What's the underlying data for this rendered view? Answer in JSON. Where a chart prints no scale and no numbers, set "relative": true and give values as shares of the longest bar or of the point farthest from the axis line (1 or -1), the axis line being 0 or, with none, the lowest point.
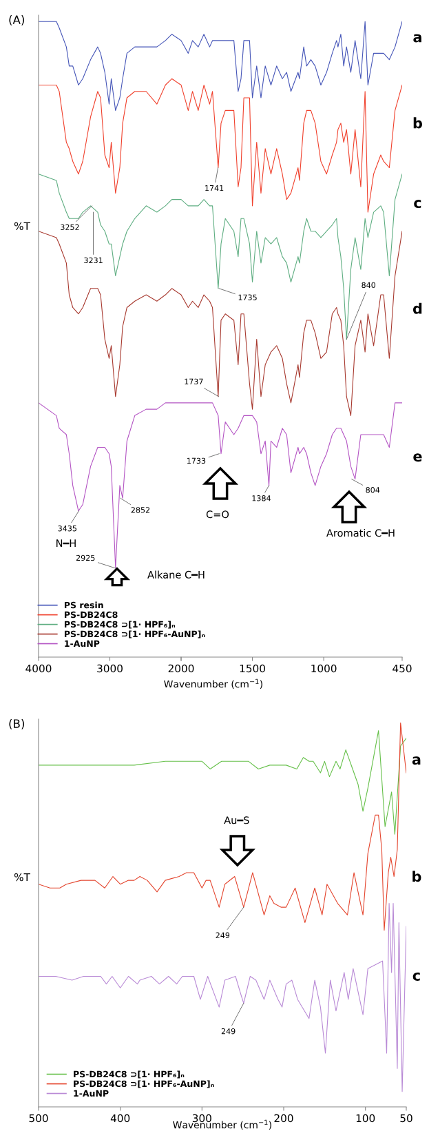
{
  "chart_data": [
    {
      "type": "line",
      "title": "(A)",
      "ylabel": "%T",
      "xlabel": "Wavenumber (cm$^{−1}$)",
      "relative": true,
      "legend": "bottom right",
      "grid": false,
      "xlim": [
        4000,
        2000
      ],
      "xticks": [
        4000,
        3000,
        {
          "value": 2000,
          "label": null
        }
      ],
      "x": [
        4000,
        3750,
        3710,
        3610,
        3570,
        3520,
        3440,
        3380,
        3270,
        3170,
        3130,
        3070,
        3010,
        2980,
        2920,
        2860,
        2820,
        2760,
        2650,
        2490,
        2340,
        2220,
        2130,
        2000
      ],
      "series": [
        {
          "name": "PS resin",
          "color": "#4656b8",
          "values": [
            1.0,
            1.0,
            0.99,
            0.96,
            0.93,
            0.93,
            0.9,
            0.91,
            0.94,
            0.96,
            0.95,
            0.92,
            0.87,
            0.91,
            0.86,
            0.88,
            0.91,
            0.95,
            0.96,
            0.96,
            0.96,
            0.97,
            0.98,
            0.97
          ]
        },
        {
          "name": "PS-DB24C8",
          "color": "#f0412d",
          "values": [
            0.9,
            0.9,
            0.89,
            0.81,
            0.8,
            0.78,
            0.76,
            0.78,
            0.85,
            0.89,
            0.88,
            0.79,
            0.77,
            0.81,
            0.73,
            0.77,
            0.84,
            0.88,
            0.89,
            0.89,
            0.87,
            0.9,
            0.91,
            0.9
          ]
        },
        {
          "name": "PS-DB24C8 ⊃[1· HPF₆]ₙ",
          "color": "#5fae82",
          "values": [
            0.76,
            0.75,
            0.73,
            0.7,
            0.69,
            0.69,
            0.69,
            0.7,
            0.71,
            0.7,
            0.68,
            0.67,
            0.65,
            0.65,
            0.6,
            0.63,
            0.65,
            0.67,
            0.69,
            0.71,
            0.7,
            0.71,
            0.72,
            0.72
          ]
        },
        {
          "name": "PS-DB24C8 ⊃[1· HPF₆-AuNP]ₙ",
          "color": "#a83a30",
          "values": [
            0.67,
            0.66,
            0.65,
            0.62,
            0.57,
            0.55,
            0.54,
            0.55,
            0.58,
            0.58,
            0.57,
            0.5,
            0.47,
            0.49,
            0.41,
            0.46,
            0.52,
            0.55,
            0.56,
            0.57,
            0.56,
            0.57,
            0.58,
            0.57
          ]
        },
        {
          "name": "1-AuNP",
          "color": "#b455c4",
          "values": [
            0.4,
            0.38,
            0.36,
            0.35,
            0.32,
            0.27,
            0.23,
            0.24,
            0.3,
            0.33,
            0.33,
            0.33,
            0.32,
            0.3,
            0.14,
            0.27,
            0.25,
            0.34,
            0.38,
            0.39,
            0.39,
            0.4,
            0.4,
            0.4
          ]
        }
      ],
      "annotations": [
        "N━H",
        "Alkane C━H",
        {
          "text": "3252",
          "x": 3252,
          "y": 0.71
        },
        {
          "text": "3231",
          "x": 3231,
          "y": 0.7
        },
        {
          "text": "3435",
          "x": 3435,
          "y": 0.23
        },
        {
          "text": "2925",
          "x": 2925,
          "y": 0.14
        },
        {
          "text": "2852",
          "x": 2852,
          "y": 0.25
        }
      ]
    },
    {
      "type": "line",
      "relative": true,
      "grid": false,
      "xlim": [
        2000,
        450
      ],
      "xticks": [
        2000,
        1500,
        1000,
        450
      ],
      "x": [
        2000,
        1950,
        1920,
        1880,
        1840,
        1800,
        1780,
        1740,
        1720,
        1690,
        1630,
        1600,
        1580,
        1560,
        1520,
        1500,
        1470,
        1440,
        1410,
        1370,
        1330,
        1290,
        1260,
        1230,
        1180,
        1170,
        1140,
        1120,
        1090,
        1060,
        1020,
        980,
        940,
        910,
        900,
        880,
        860,
        840,
        810,
        780,
        740,
        710,
        690,
        650,
        600,
        580,
        540,
        500,
        450
      ],
      "series": [
        {
          "color": "#4656b8",
          "values": [
            0.97,
            0.95,
            0.97,
            0.96,
            0.98,
            0.96,
            0.97,
            0.97,
            0.97,
            0.97,
            0.97,
            0.89,
            0.91,
            0.97,
            0.97,
            0.88,
            0.93,
            0.88,
            0.93,
            0.9,
            0.93,
            0.91,
            0.92,
            0.89,
            0.92,
            0.91,
            0.96,
            0.93,
            0.94,
            0.93,
            0.9,
            0.92,
            0.95,
            0.97,
            0.96,
            0.98,
            0.93,
            0.96,
            0.92,
            0.97,
            0.91,
            1.0,
            0.9,
            0.95,
            0.95,
            0.95,
            0.94,
            0.96,
            1.0
          ]
        },
        {
          "color": "#f0412d",
          "values": [
            0.9,
            0.86,
            0.89,
            0.86,
            0.9,
            0.87,
            0.89,
            0.77,
            0.84,
            0.86,
            0.86,
            0.74,
            0.77,
            0.88,
            0.88,
            0.71,
            0.81,
            0.73,
            0.8,
            0.76,
            0.8,
            0.76,
            0.72,
            0.73,
            0.77,
            0.75,
            0.84,
            0.86,
            0.86,
            0.84,
            0.78,
            0.76,
            0.79,
            0.81,
            0.83,
            0.84,
            0.81,
            0.83,
            0.76,
            0.83,
            0.74,
            0.89,
            0.7,
            0.76,
            0.79,
            0.78,
            0.77,
            0.86,
            0.9
          ]
        },
        {
          "color": "#5fae82",
          "values": [
            0.72,
            0.71,
            0.71,
            0.71,
            0.72,
            0.71,
            0.71,
            0.58,
            0.65,
            0.69,
            0.67,
            0.63,
            0.69,
            0.69,
            0.65,
            0.59,
            0.67,
            0.62,
            0.66,
            0.65,
            0.66,
            0.63,
            0.62,
            0.59,
            0.63,
            0.62,
            0.67,
            0.69,
            0.67,
            0.67,
            0.66,
            0.67,
            0.68,
            0.69,
            0.66,
            0.63,
            0.58,
            0.5,
            0.61,
            0.66,
            0.61,
            0.69,
            0.66,
            0.7,
            0.71,
            0.7,
            0.6,
            0.72,
            0.76
          ]
        },
        {
          "color": "#a83a30",
          "values": [
            0.57,
            0.55,
            0.56,
            0.55,
            0.57,
            0.56,
            0.55,
            0.41,
            0.53,
            0.54,
            0.53,
            0.46,
            0.54,
            0.54,
            0.43,
            0.39,
            0.5,
            0.41,
            0.46,
            0.48,
            0.49,
            0.47,
            0.43,
            0.4,
            0.46,
            0.44,
            0.51,
            0.53,
            0.53,
            0.51,
            0.47,
            0.48,
            0.54,
            0.55,
            0.54,
            0.53,
            0.49,
            0.41,
            0.38,
            0.49,
            0.53,
            0.48,
            0.54,
            0.49,
            0.57,
            0.57,
            0.47,
            0.6,
            0.67
          ]
        },
        {
          "color": "#b455c4",
          "x": [
            2000,
            1950,
            1920,
            1880,
            1840,
            1800,
            1780,
            1740,
            1720,
            1690,
            1630,
            1600,
            1580,
            1560,
            1520,
            1500,
            1470,
            1440,
            1410,
            1384,
            1370,
            1330,
            1290,
            1260,
            1230,
            1180,
            1170,
            1140,
            1120,
            1090,
            1060,
            1020,
            980,
            940,
            910,
            900,
            880,
            860,
            840,
            810,
            780,
            740,
            710,
            690,
            650,
            600,
            580,
            540,
            500,
            450
          ],
          "values": [
            0.4,
            0.4,
            0.4,
            0.4,
            0.4,
            0.4,
            0.4,
            0.38,
            0.32,
            0.37,
            0.35,
            0.36,
            0.37,
            0.38,
            0.38,
            0.38,
            0.37,
            0.32,
            0.34,
            0.27,
            0.34,
            0.33,
            0.36,
            0.35,
            0.29,
            0.33,
            0.32,
            0.33,
            0.32,
            0.29,
            0.27,
            0.3,
            0.32,
            0.35,
            0.36,
            0.36,
            0.36,
            0.35,
            0.34,
            0.3,
            0.28,
            0.35,
            0.35,
            0.35,
            0.35,
            0.35,
            0.35,
            0.33,
            0.4,
            0.4
          ]
        }
      ],
      "annotations": [
        "C=O",
        "Aromatic C━H",
        "a",
        "b",
        "c",
        "d",
        "e",
        {
          "text": "1741",
          "x": 1741,
          "y": 0.77
        },
        {
          "text": "1735",
          "x": 1735,
          "y": 0.58
        },
        {
          "text": "840",
          "x": 840,
          "y": 0.5
        },
        {
          "text": "1737",
          "x": 1737,
          "y": 0.41
        },
        {
          "text": "1733",
          "x": 1733,
          "y": 0.32
        },
        {
          "text": "1384",
          "x": 1384,
          "y": 0.27
        },
        {
          "text": "804",
          "x": 804,
          "y": 0.28
        }
      ]
    },
    {
      "type": "line",
      "title": "(B)",
      "ylabel": "%T",
      "xlabel": "Wavenumber (cm$^{−1}$)",
      "relative": true,
      "legend": "bottom left",
      "grid": false,
      "xlim": [
        500,
        50
      ],
      "xticks": [
        500,
        400,
        300,
        200,
        100,
        50
      ],
      "series": [
        {
          "name": "PS-DB24C8 ⊃[1· HPF₆]ₙ",
          "color": "#66c04a",
          "x": [
            500,
            433,
            383,
            345,
            328,
            300,
            290,
            276,
            262,
            243,
            231,
            217,
            197,
            184,
            176,
            169,
            164,
            155,
            150,
            144,
            136,
            131,
            124,
            109,
            103,
            97,
            84,
            76,
            68,
            64,
            57,
            50
          ],
          "values": [
            0.89,
            0.89,
            0.89,
            0.9,
            0.9,
            0.9,
            0.88,
            0.9,
            0.9,
            0.9,
            0.88,
            0.89,
            0.89,
            0.88,
            0.91,
            0.9,
            0.9,
            0.87,
            0.9,
            0.86,
            0.9,
            0.88,
            0.93,
            0.84,
            0.77,
            0.83,
            0.98,
            0.73,
            0.82,
            0.71,
            0.94,
            0.96
          ]
        },
        {
          "name": "PS-DB24C8 ⊃[1· HPF₆-AuNP]ₙ",
          "color": "#e4462f",
          "x": [
            500,
            486,
            474,
            466,
            448,
            431,
            419,
            409,
            400,
            390,
            383,
            376,
            367,
            355,
            345,
            328,
            319,
            310,
            300,
            295,
            290,
            279,
            272,
            260,
            249,
            238,
            224,
            217,
            212,
            203,
            197,
            186,
            174,
            162,
            153,
            147,
            134,
            122,
            114,
            103,
            97,
            88,
            84,
            80,
            77,
            72,
            69,
            65,
            61,
            57,
            50
          ],
          "values": [
            0.58,
            0.57,
            0.57,
            0.58,
            0.59,
            0.59,
            0.57,
            0.6,
            0.58,
            0.59,
            0.59,
            0.6,
            0.59,
            0.56,
            0.59,
            0.6,
            0.61,
            0.61,
            0.57,
            0.59,
            0.59,
            0.52,
            0.58,
            0.6,
            0.52,
            0.61,
            0.5,
            0.55,
            0.53,
            0.52,
            0.52,
            0.57,
            0.48,
            0.57,
            0.5,
            0.58,
            0.53,
            0.5,
            0.61,
            0.5,
            0.66,
            0.76,
            0.76,
            0.67,
            0.46,
            0.61,
            0.65,
            0.6,
            0.67,
            1.0,
            0.87
          ]
        },
        {
          "name": "1-AuNP",
          "color": "#b98ad6",
          "x": [
            500,
            479,
            459,
            445,
            424,
            417,
            410,
            400,
            390,
            379,
            376,
            362,
            352,
            341,
            331,
            324,
            310,
            302,
            293,
            279,
            272,
            259,
            252,
            249,
            241,
            234,
            224,
            217,
            207,
            202,
            197,
            190,
            183,
            169,
            162,
            155,
            149,
            143,
            136,
            126,
            121,
            115,
            103,
            97,
            88,
            79,
            74,
            71,
            68,
            66,
            61,
            59,
            55,
            50
          ],
          "values": [
            0.34,
            0.34,
            0.33,
            0.34,
            0.34,
            0.32,
            0.34,
            0.31,
            0.34,
            0.32,
            0.33,
            0.34,
            0.32,
            0.34,
            0.32,
            0.34,
            0.34,
            0.28,
            0.34,
            0.26,
            0.33,
            0.34,
            0.29,
            0.27,
            0.34,
            0.33,
            0.28,
            0.33,
            0.28,
            0.26,
            0.32,
            0.33,
            0.28,
            0.23,
            0.33,
            0.26,
            0.14,
            0.33,
            0.25,
            0.35,
            0.28,
            0.36,
            0.24,
            0.36,
            0.37,
            0.38,
            0.14,
            0.53,
            0.35,
            0.53,
            0.1,
            0.48,
            0.04,
            0.47
          ]
        }
      ],
      "annotations": [
        "Au━S",
        "a",
        "b",
        "c",
        {
          "text": "249",
          "x": 249,
          "y": 0.52
        },
        {
          "text": "249",
          "x": 249,
          "y": 0.27
        }
      ]
    }
  ]
}
